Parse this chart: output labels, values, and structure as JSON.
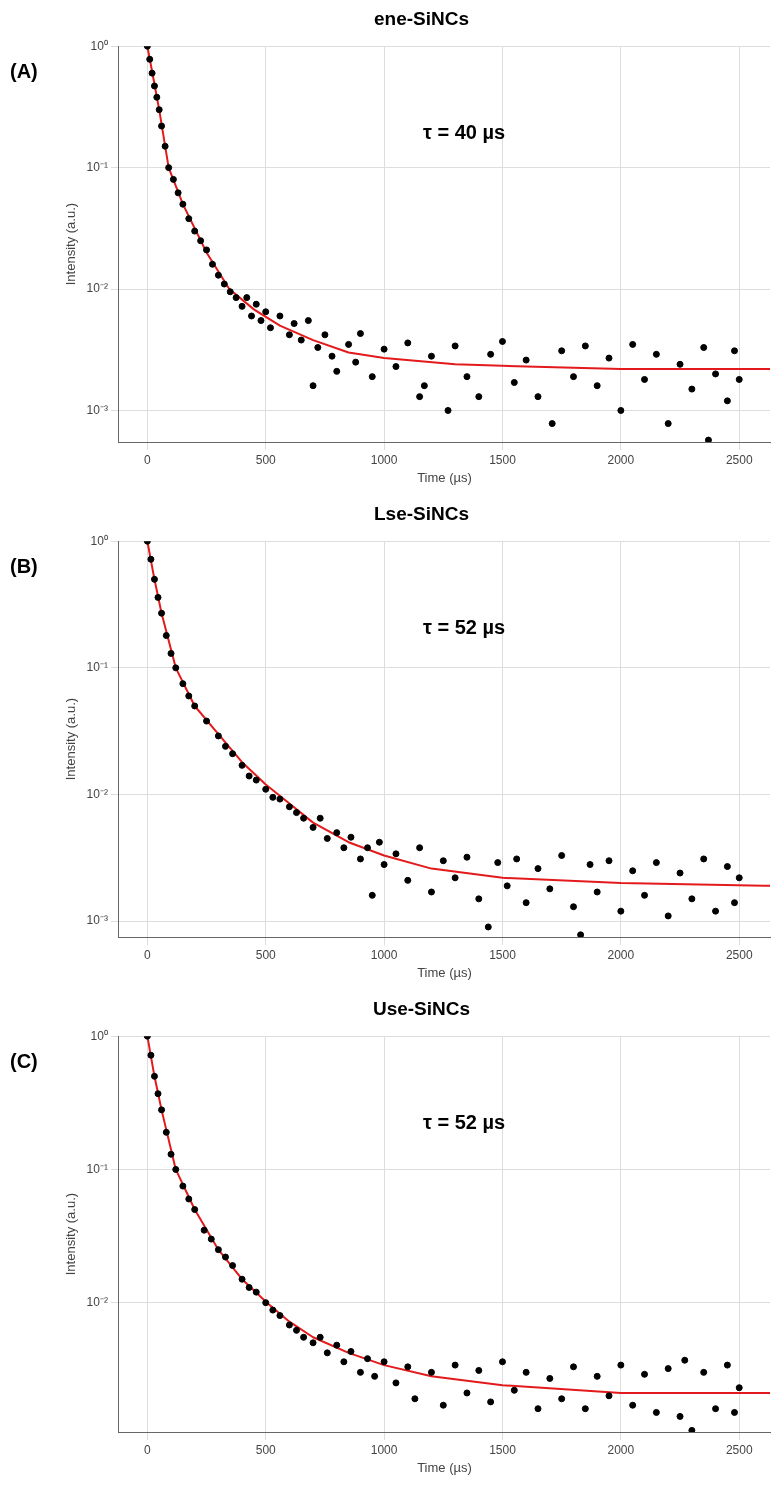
{
  "chart_data": [
    {
      "type": "scatter",
      "title": "ene-SiNCs",
      "xlabel": "Time (µs)",
      "ylabel": "Intensity (a.u.)",
      "annotations": [
        "(A)",
        "τ = 40 µs"
      ],
      "log": "y",
      "grid": true,
      "xlim": [
        -120,
        2630
      ],
      "xticks": [
        0,
        500,
        1000,
        1500,
        2000,
        2500
      ],
      "ylim": [
        0.00055,
        1
      ],
      "yticks": [
        {
          "value": 0.001,
          "label": "10⁻³"
        },
        {
          "value": 0.01,
          "label": "10⁻²"
        },
        {
          "value": 0.1,
          "label": "10⁻¹"
        },
        {
          "value": 1,
          "label": "10⁰"
        }
      ],
      "series": [
        {
          "marker": "circle",
          "color": "#000000",
          "x": [
            0,
            10,
            20,
            30,
            40,
            50,
            60,
            75,
            90,
            110,
            130,
            150,
            175,
            200,
            225,
            250,
            275,
            300,
            325,
            350,
            375,
            400,
            420,
            440,
            460,
            480,
            500,
            520,
            560,
            600,
            620,
            650,
            680,
            700,
            720,
            750,
            780,
            800,
            850,
            880,
            900,
            950,
            1000,
            1050,
            1100,
            1150,
            1170,
            1200,
            1270,
            1300,
            1350,
            1400,
            1450,
            1500,
            1550,
            1600,
            1650,
            1710,
            1750,
            1800,
            1850,
            1900,
            1950,
            2000,
            2050,
            2100,
            2150,
            2200,
            2250,
            2300,
            2350,
            2370,
            2400,
            2450,
            2480,
            2500
          ],
          "values": [
            1,
            0.78,
            0.6,
            0.47,
            0.38,
            0.3,
            0.22,
            0.15,
            0.1,
            0.08,
            0.062,
            0.05,
            0.038,
            0.03,
            0.025,
            0.021,
            0.016,
            0.013,
            0.011,
            0.0095,
            0.0085,
            0.0072,
            0.0085,
            0.006,
            0.0075,
            0.0055,
            0.0065,
            0.0048,
            0.006,
            0.0042,
            0.0052,
            0.0038,
            0.0055,
            0.0016,
            0.0033,
            0.0042,
            0.0028,
            0.0021,
            0.0035,
            0.0025,
            0.0043,
            0.0019,
            0.0032,
            0.0023,
            0.0036,
            0.0013,
            0.0016,
            0.0028,
            0.001,
            0.0034,
            0.0019,
            0.0013,
            0.0029,
            0.0037,
            0.0017,
            0.0026,
            0.0013,
            0.00078,
            0.0031,
            0.0019,
            0.0034,
            0.0016,
            0.0027,
            0.001,
            0.0035,
            0.0018,
            0.0029,
            0.00078,
            0.0024,
            0.0015,
            0.0033,
            0.00057,
            0.002,
            0.0012,
            0.0031,
            0.0018
          ]
        },
        {
          "type": "line",
          "marker": "none",
          "color": "#e31a1c",
          "x": [
            0,
            25,
            50,
            90,
            150,
            250,
            346,
            450,
            560,
            700,
            850,
            1000,
            1300,
            1600,
            2000,
            2630
          ],
          "values": [
            1,
            0.55,
            0.3,
            0.1,
            0.05,
            0.02,
            0.01,
            0.0068,
            0.005,
            0.0038,
            0.003,
            0.0027,
            0.0024,
            0.0023,
            0.0022,
            0.0022
          ]
        }
      ]
    },
    {
      "type": "scatter",
      "title": "Lse-SiNCs",
      "xlabel": "Time (µs)",
      "ylabel": "Intensity (a.u.)",
      "annotations": [
        "(B)",
        "τ = 52 µs"
      ],
      "log": "y",
      "grid": true,
      "xlim": [
        -120,
        2630
      ],
      "xticks": [
        0,
        500,
        1000,
        1500,
        2000,
        2500
      ],
      "ylim": [
        0.00075,
        1
      ],
      "yticks": [
        {
          "value": 0.001,
          "label": "10⁻³"
        },
        {
          "value": 0.01,
          "label": "10⁻²"
        },
        {
          "value": 0.1,
          "label": "10⁻¹"
        },
        {
          "value": 1,
          "label": "10⁰"
        }
      ],
      "series": [
        {
          "marker": "circle",
          "color": "#000000",
          "x": [
            0,
            15,
            30,
            45,
            60,
            80,
            100,
            120,
            150,
            175,
            200,
            250,
            300,
            330,
            360,
            400,
            430,
            460,
            500,
            530,
            560,
            600,
            630,
            660,
            700,
            730,
            760,
            800,
            830,
            860,
            900,
            930,
            950,
            980,
            1000,
            1050,
            1100,
            1150,
            1200,
            1250,
            1300,
            1350,
            1400,
            1440,
            1480,
            1520,
            1560,
            1600,
            1650,
            1700,
            1750,
            1800,
            1830,
            1870,
            1900,
            1950,
            2000,
            2050,
            2100,
            2150,
            2200,
            2250,
            2300,
            2350,
            2400,
            2450,
            2480,
            2500
          ],
          "values": [
            1,
            0.72,
            0.5,
            0.36,
            0.27,
            0.18,
            0.13,
            0.1,
            0.075,
            0.06,
            0.05,
            0.038,
            0.029,
            0.024,
            0.021,
            0.017,
            0.014,
            0.013,
            0.011,
            0.0095,
            0.0092,
            0.008,
            0.0072,
            0.0065,
            0.0055,
            0.0065,
            0.0045,
            0.005,
            0.0038,
            0.0046,
            0.0031,
            0.0038,
            0.0016,
            0.0042,
            0.0028,
            0.0034,
            0.0021,
            0.0038,
            0.0017,
            0.003,
            0.0022,
            0.0032,
            0.0015,
            0.0009,
            0.0029,
            0.0019,
            0.0031,
            0.0014,
            0.0026,
            0.0018,
            0.0033,
            0.0013,
            0.00078,
            0.0028,
            0.0017,
            0.003,
            0.0012,
            0.0025,
            0.0016,
            0.0029,
            0.0011,
            0.0024,
            0.0015,
            0.0031,
            0.0012,
            0.0027,
            0.0014,
            0.0022
          ]
        },
        {
          "type": "line",
          "marker": "none",
          "color": "#e31a1c",
          "x": [
            0,
            30,
            60,
            120,
            200,
            300,
            400,
            500,
            600,
            700,
            850,
            1000,
            1200,
            1500,
            2000,
            2630
          ],
          "values": [
            1,
            0.5,
            0.27,
            0.1,
            0.05,
            0.03,
            0.018,
            0.012,
            0.0085,
            0.006,
            0.0042,
            0.0033,
            0.0026,
            0.0022,
            0.002,
            0.0019
          ]
        }
      ]
    },
    {
      "type": "scatter",
      "title": "Use-SiNCs",
      "xlabel": "Time (µs)",
      "ylabel": "Intensity (a.u.)",
      "annotations": [
        "(C)",
        "τ = 52 µs"
      ],
      "log": "y",
      "grid": true,
      "xlim": [
        -120,
        2630
      ],
      "xticks": [
        0,
        500,
        1000,
        1500,
        2000,
        2500
      ],
      "ylim": [
        0.00107,
        1
      ],
      "yticks": [
        {
          "value": 0.01,
          "label": "10⁻²"
        },
        {
          "value": 0.1,
          "label": "10⁻¹"
        },
        {
          "value": 1,
          "label": "10⁰"
        }
      ],
      "series": [
        {
          "marker": "circle",
          "color": "#000000",
          "x": [
            0,
            15,
            30,
            45,
            60,
            80,
            100,
            120,
            150,
            175,
            200,
            240,
            270,
            300,
            330,
            360,
            400,
            430,
            460,
            500,
            530,
            560,
            600,
            630,
            660,
            700,
            730,
            760,
            800,
            830,
            860,
            900,
            930,
            960,
            1000,
            1050,
            1100,
            1130,
            1200,
            1250,
            1300,
            1350,
            1400,
            1450,
            1500,
            1550,
            1600,
            1650,
            1700,
            1750,
            1800,
            1850,
            1900,
            1950,
            2000,
            2050,
            2100,
            2150,
            2200,
            2250,
            2270,
            2300,
            2350,
            2400,
            2450,
            2480,
            2500
          ],
          "values": [
            1,
            0.72,
            0.5,
            0.37,
            0.28,
            0.19,
            0.13,
            0.1,
            0.075,
            0.06,
            0.05,
            0.035,
            0.03,
            0.025,
            0.022,
            0.019,
            0.015,
            0.013,
            0.012,
            0.01,
            0.0088,
            0.008,
            0.0068,
            0.0062,
            0.0055,
            0.005,
            0.0055,
            0.0042,
            0.0048,
            0.0036,
            0.0043,
            0.003,
            0.0038,
            0.0028,
            0.0036,
            0.0025,
            0.0033,
            0.0019,
            0.003,
            0.0017,
            0.0034,
            0.0021,
            0.0031,
            0.0018,
            0.0036,
            0.0022,
            0.003,
            0.0016,
            0.0027,
            0.0019,
            0.0033,
            0.0016,
            0.0028,
            0.002,
            0.0034,
            0.0017,
            0.0029,
            0.0015,
            0.0032,
            0.0014,
            0.0037,
            0.0011,
            0.003,
            0.0016,
            0.0034,
            0.0015,
            0.0023
          ]
        },
        {
          "type": "line",
          "marker": "none",
          "color": "#e31a1c",
          "x": [
            0,
            30,
            60,
            120,
            200,
            300,
            400,
            505,
            600,
            700,
            850,
            1000,
            1200,
            1500,
            2000,
            2630
          ],
          "values": [
            1,
            0.5,
            0.28,
            0.1,
            0.05,
            0.025,
            0.015,
            0.01,
            0.0072,
            0.0055,
            0.0042,
            0.0034,
            0.0028,
            0.0024,
            0.0021,
            0.0021
          ]
        }
      ]
    }
  ]
}
